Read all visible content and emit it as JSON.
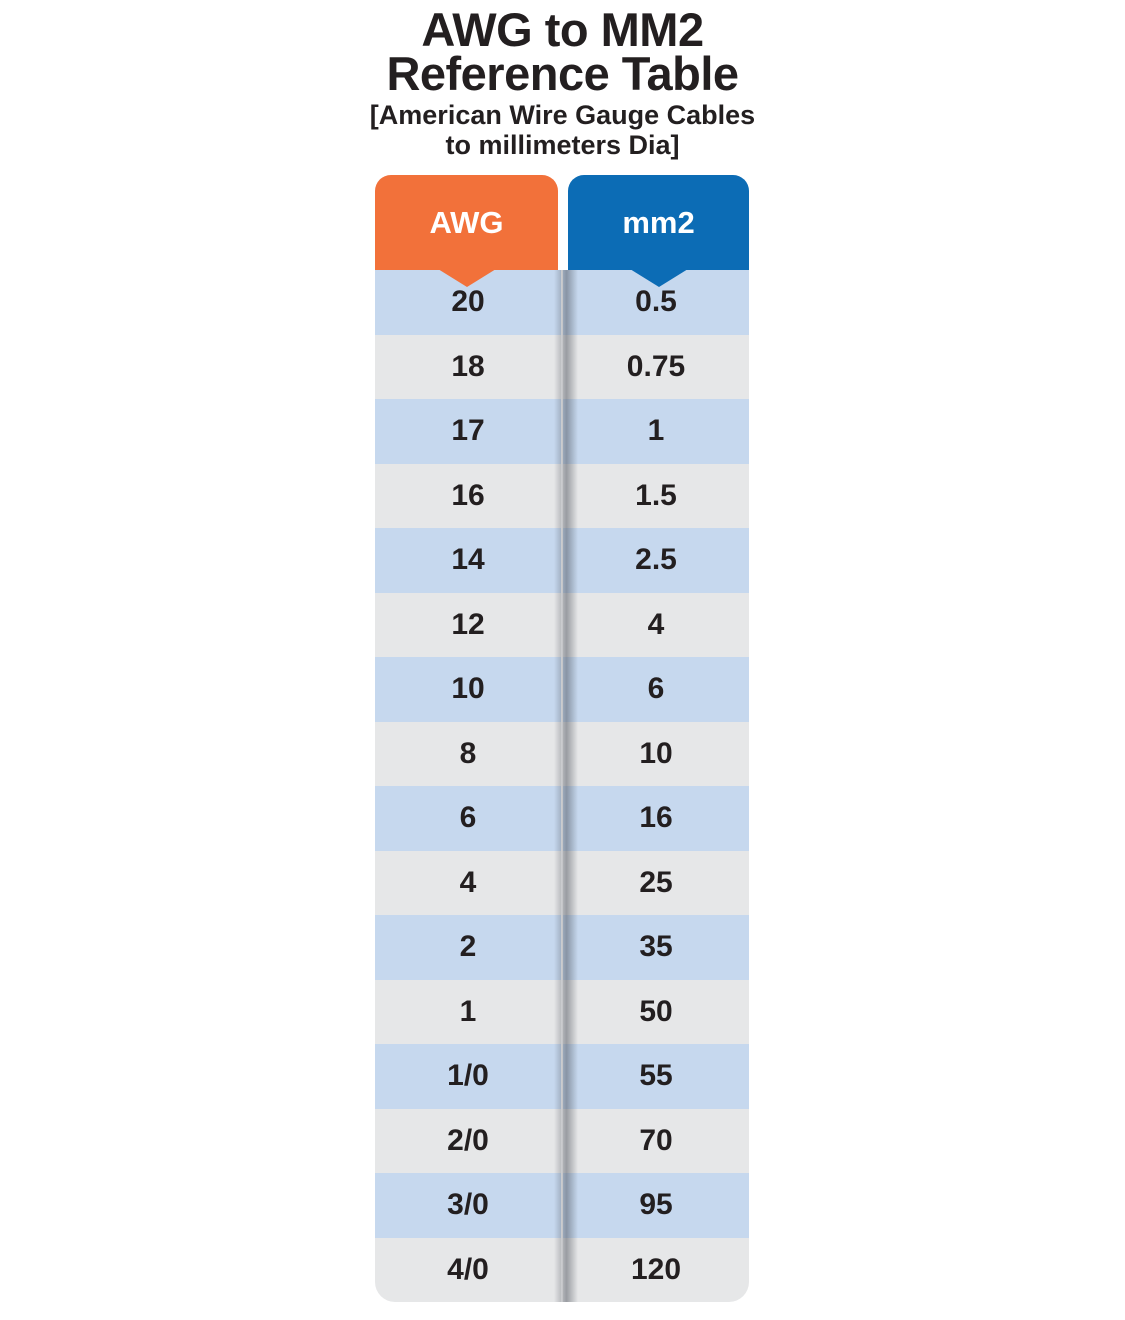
{
  "title": {
    "line1": "AWG to MM2",
    "line2": "Reference Table",
    "subtitle_line1": "[American Wire Gauge Cables",
    "subtitle_line2": "to millimeters Dia]"
  },
  "colors": {
    "awg_header": "#F2713A",
    "mm2_header": "#0C6CB5",
    "row_blue": "#C6D8EE",
    "row_gray": "#E6E7E8",
    "header_text": "#FFFFFF",
    "text": "#231F20"
  },
  "chart_data": {
    "type": "table",
    "title": "AWG to MM2 Reference Table",
    "subtitle": "[American Wire Gauge Cables to millimeters Dia]",
    "columns": [
      "AWG",
      "mm2"
    ],
    "rows": [
      [
        "20",
        "0.5"
      ],
      [
        "18",
        "0.75"
      ],
      [
        "17",
        "1"
      ],
      [
        "16",
        "1.5"
      ],
      [
        "14",
        "2.5"
      ],
      [
        "12",
        "4"
      ],
      [
        "10",
        "6"
      ],
      [
        "8",
        "10"
      ],
      [
        "6",
        "16"
      ],
      [
        "4",
        "25"
      ],
      [
        "2",
        "35"
      ],
      [
        "1",
        "50"
      ],
      [
        "1/0",
        "55"
      ],
      [
        "2/0",
        "70"
      ],
      [
        "3/0",
        "95"
      ],
      [
        "4/0",
        "120"
      ]
    ]
  }
}
